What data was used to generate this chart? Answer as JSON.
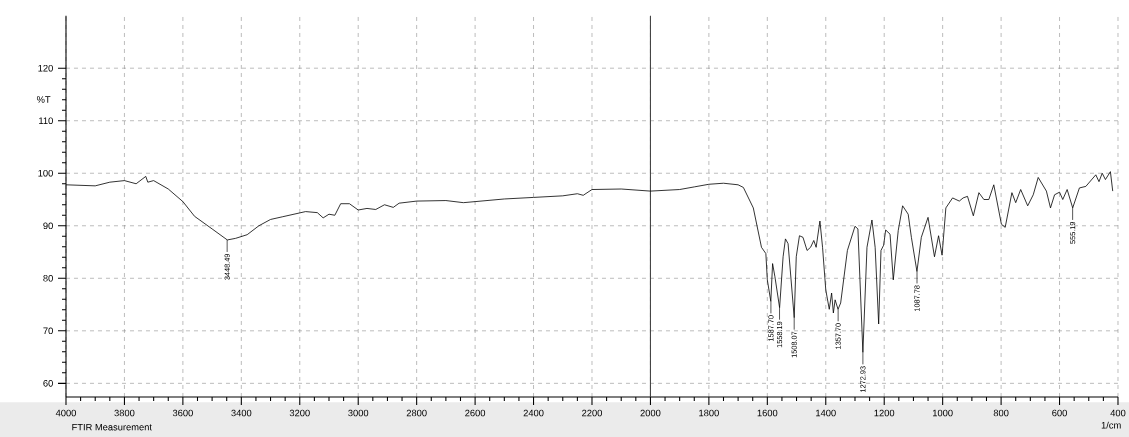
{
  "chart_data": {
    "type": "line",
    "xlabel": "1/cm",
    "ylabel": "%T",
    "xlim": [
      4000,
      400
    ],
    "ylim": [
      57.4,
      130
    ],
    "xticks": [
      4000,
      3800,
      3600,
      3400,
      3200,
      3000,
      2800,
      2600,
      2400,
      2200,
      2000,
      1800,
      1600,
      1400,
      1200,
      1000,
      800,
      600,
      400
    ],
    "yticks": [
      60,
      70,
      80,
      90,
      100,
      110,
      120
    ],
    "grid": true,
    "ref_lines": [
      {
        "axis": "x",
        "value": 2000,
        "color": "#404040",
        "line_style": "solid"
      }
    ],
    "series": [
      {
        "color": "#000000",
        "x": [
          4000,
          3900,
          3850,
          3800,
          3760,
          3727,
          3720,
          3700,
          3650,
          3600,
          3560,
          3500,
          3448,
          3420,
          3380,
          3340,
          3300,
          3260,
          3220,
          3180,
          3140,
          3120,
          3100,
          3080,
          3060,
          3030,
          3000,
          2970,
          2940,
          2910,
          2880,
          2860,
          2800,
          2700,
          2640,
          2600,
          2500,
          2400,
          2300,
          2250,
          2230,
          2200,
          2100,
          2000,
          1900,
          1850,
          1800,
          1750,
          1700,
          1682,
          1648,
          1620,
          1605,
          1600,
          1588,
          1582,
          1574,
          1558,
          1546,
          1538,
          1529,
          1508,
          1501,
          1490,
          1478,
          1464,
          1452,
          1441,
          1433,
          1420,
          1411,
          1400,
          1388,
          1380,
          1374,
          1368,
          1358,
          1349,
          1326,
          1300,
          1290,
          1273,
          1259,
          1242,
          1231,
          1219,
          1211,
          1202,
          1195,
          1180,
          1169,
          1152,
          1137,
          1118,
          1107,
          1088,
          1073,
          1050,
          1028,
          1014,
          1002,
          989,
          966,
          943,
          930,
          915,
          895,
          876,
          859,
          842,
          825,
          799,
          786,
          763,
          750,
          733,
          709,
          690,
          673,
          645,
          631,
          617,
          600,
          589,
          574,
          555,
          532,
          510,
          476,
          465,
          454,
          443,
          426,
          418
        ],
        "values": [
          97.8,
          97.6,
          98.3,
          98.6,
          98.0,
          99.4,
          98.3,
          98.6,
          97.0,
          94.6,
          91.8,
          89.4,
          87.3,
          87.6,
          88.3,
          90.0,
          91.2,
          91.7,
          92.2,
          92.7,
          92.5,
          91.5,
          92.2,
          92.0,
          94.2,
          94.2,
          93.0,
          93.3,
          93.1,
          94.0,
          93.5,
          94.3,
          94.7,
          94.8,
          94.4,
          94.6,
          95.1,
          95.4,
          95.7,
          96.1,
          95.8,
          96.9,
          97.0,
          96.6,
          96.9,
          97.4,
          97.9,
          98.1,
          97.8,
          97.3,
          93.4,
          85.9,
          84.7,
          79.7,
          75.6,
          82.8,
          80.3,
          74.4,
          84.1,
          87.5,
          86.6,
          72.5,
          84.1,
          88.1,
          87.8,
          85.3,
          85.9,
          87.2,
          85.9,
          90.9,
          85.9,
          77.8,
          74.1,
          77.2,
          73.4,
          75.9,
          74.1,
          75.3,
          85.3,
          89.9,
          89.4,
          65.9,
          85.9,
          91.1,
          85.9,
          71.3,
          85.3,
          86.3,
          89.2,
          88.4,
          79.7,
          89.1,
          93.8,
          92.2,
          87.8,
          81.3,
          87.8,
          91.6,
          84.1,
          88.1,
          84.4,
          93.4,
          95.3,
          94.7,
          95.3,
          95.6,
          91.9,
          96.3,
          95.0,
          95.0,
          97.8,
          90.3,
          89.7,
          96.3,
          94.4,
          96.9,
          93.8,
          95.9,
          99.2,
          96.6,
          93.4,
          95.9,
          96.4,
          95.0,
          96.9,
          93.4,
          97.2,
          97.5,
          99.7,
          98.4,
          100.0,
          98.8,
          100.3,
          96.6
        ]
      }
    ],
    "annotations": [
      {
        "text": "3448.49",
        "x": 3448.49,
        "y": 87.3
      },
      {
        "text": "1587.70",
        "x": 1587.7,
        "y": 75.6
      },
      {
        "text": "1558.19",
        "x": 1558.19,
        "y": 74.4
      },
      {
        "text": "1508.07",
        "x": 1508.07,
        "y": 72.5
      },
      {
        "text": "1357.70",
        "x": 1357.7,
        "y": 74.1
      },
      {
        "text": "1272.93",
        "x": 1272.93,
        "y": 65.9
      },
      {
        "text": "1087.78",
        "x": 1087.78,
        "y": 81.3
      },
      {
        "text": "555.19",
        "x": 555.19,
        "y": 93.4
      },
      "FTIR Measurement"
    ]
  }
}
